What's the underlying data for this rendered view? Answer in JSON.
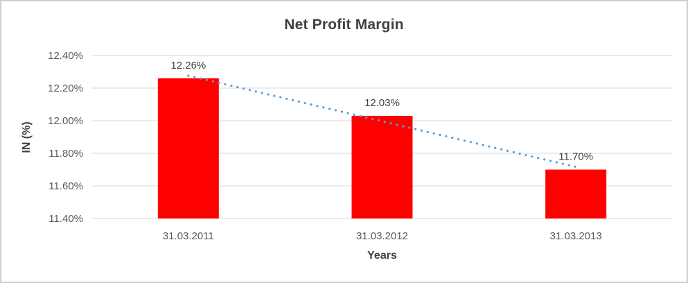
{
  "chart_data": {
    "type": "bar",
    "title": "Net Profit Margin",
    "xlabel": "Years",
    "ylabel": "IN (%)",
    "categories": [
      "31.03.2011",
      "31.03.2012",
      "31.03.2013"
    ],
    "values": [
      12.26,
      12.03,
      11.7
    ],
    "value_labels": [
      "12.26%",
      "12.03%",
      "11.70%"
    ],
    "yticks": [
      "11.40%",
      "11.60%",
      "11.80%",
      "12.00%",
      "12.20%",
      "12.40%"
    ],
    "ylim": [
      11.4,
      12.4
    ],
    "ytick_step": 0.2,
    "grid": true,
    "legend": "none",
    "bar_color": "#ff0000",
    "gridline_color": "#d9d9d9",
    "trendline": {
      "type": "linear",
      "style": "dotted",
      "color": "#5b9bd5"
    }
  }
}
